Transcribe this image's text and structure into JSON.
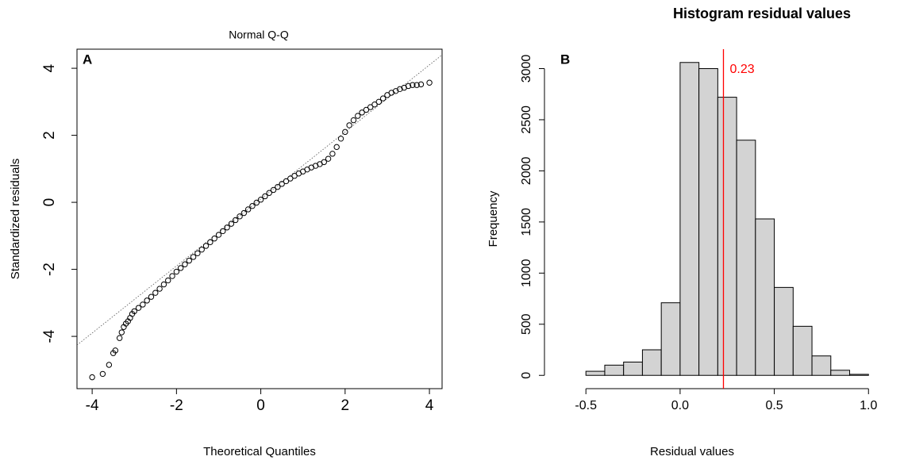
{
  "chart_data": [
    {
      "type": "scatter",
      "title": "Normal Q-Q",
      "panel_label": "A",
      "x_label": "Theoretical Quantiles",
      "y_label": "Standardized residuals",
      "x": [
        -4.0,
        -3.75,
        -3.6,
        -3.5,
        -3.45,
        -3.35,
        -3.3,
        -3.25,
        -3.2,
        -3.15,
        -3.1,
        -3.05,
        -3.0,
        -2.9,
        -2.8,
        -2.7,
        -2.6,
        -2.5,
        -2.4,
        -2.3,
        -2.2,
        -2.1,
        -2.0,
        -1.9,
        -1.8,
        -1.7,
        -1.6,
        -1.5,
        -1.4,
        -1.3,
        -1.2,
        -1.1,
        -1.0,
        -0.9,
        -0.8,
        -0.7,
        -0.6,
        -0.5,
        -0.4,
        -0.3,
        -0.2,
        -0.1,
        0,
        0.1,
        0.2,
        0.3,
        0.4,
        0.5,
        0.6,
        0.7,
        0.8,
        0.9,
        1.0,
        1.1,
        1.2,
        1.3,
        1.4,
        1.5,
        1.6,
        1.7,
        1.8,
        1.9,
        2.0,
        2.1,
        2.2,
        2.3,
        2.4,
        2.5,
        2.6,
        2.7,
        2.8,
        2.9,
        3.0,
        3.1,
        3.2,
        3.3,
        3.4,
        3.5,
        3.6,
        3.7,
        3.8,
        4.0
      ],
      "values": [
        -5.22,
        -5.12,
        -4.85,
        -4.5,
        -4.42,
        -4.05,
        -3.88,
        -3.72,
        -3.62,
        -3.55,
        -3.45,
        -3.33,
        -3.25,
        -3.15,
        -3.05,
        -2.93,
        -2.82,
        -2.7,
        -2.58,
        -2.45,
        -2.33,
        -2.2,
        -2.07,
        -1.96,
        -1.85,
        -1.74,
        -1.63,
        -1.52,
        -1.41,
        -1.3,
        -1.19,
        -1.08,
        -0.97,
        -0.86,
        -0.75,
        -0.64,
        -0.53,
        -0.42,
        -0.32,
        -0.21,
        -0.11,
        -0.01,
        0.08,
        0.18,
        0.28,
        0.37,
        0.46,
        0.55,
        0.63,
        0.71,
        0.79,
        0.86,
        0.92,
        0.98,
        1.04,
        1.09,
        1.14,
        1.2,
        1.3,
        1.45,
        1.65,
        1.9,
        2.1,
        2.3,
        2.45,
        2.58,
        2.68,
        2.76,
        2.84,
        2.92,
        3.0,
        3.1,
        3.2,
        3.27,
        3.32,
        3.38,
        3.42,
        3.47,
        3.5,
        3.5,
        3.52,
        3.57
      ],
      "color": "#000000",
      "ref_line": {
        "intercept": 0.1,
        "slope": 1.0
      },
      "xlim": [
        -4.36,
        4.3
      ],
      "ylim": [
        -5.56,
        4.57
      ],
      "xticks": [
        -4,
        -2,
        0,
        2,
        4
      ],
      "yticks": [
        -4,
        -2,
        0,
        2,
        4
      ]
    },
    {
      "type": "histogram",
      "title": "Histogram residual values",
      "panel_label": "B",
      "x_label": "Residual values",
      "y_label": "Frequency",
      "bins": [
        -0.5,
        -0.4,
        -0.3,
        -0.2,
        -0.1,
        0,
        0.1,
        0.2,
        0.3,
        0.4,
        0.5,
        0.6,
        0.7,
        0.8,
        0.9,
        1.0
      ],
      "values": [
        40,
        100,
        130,
        250,
        710,
        3060,
        3000,
        2720,
        2300,
        1530,
        860,
        480,
        190,
        50,
        10
      ],
      "color": "#d3d3d3",
      "vline": {
        "value": 0.23,
        "color": "#ff0000"
      },
      "xlim": [
        -0.72,
        1.1
      ],
      "ylim": [
        -130,
        3190
      ],
      "xticks": [
        -0.5,
        {
          "value": 0,
          "label": "0.0"
        },
        0.5,
        {
          "value": 1,
          "label": "1.0"
        }
      ],
      "yticks": [
        0,
        500,
        1000,
        1500,
        2000,
        2500,
        3000
      ]
    }
  ]
}
